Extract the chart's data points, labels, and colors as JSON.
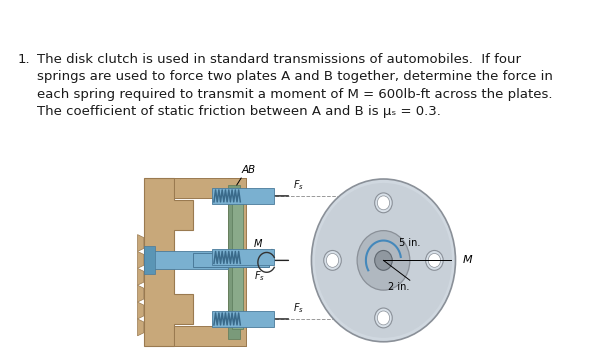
{
  "background_color": "#ffffff",
  "text_color": "#1a1a1a",
  "fontsize": 9.5,
  "line1": "The disk clutch is used in standard transmissions of automobiles.  If four",
  "line2": "springs are used to force two plates A and B together, determine the force in",
  "line3": "each spring required to transmit a moment of M = 600lb-ft across the plates.",
  "line4": "The coefficient of static friction between A and B is μₛ = 0.3.",
  "tan_color": "#c8a87a",
  "tan_dark": "#9a7a50",
  "tan_mid": "#b89060",
  "green_plate": "#8aab8a",
  "steel_blue": "#7ab0d0",
  "steel_dark": "#4a7a9a",
  "steel_mid": "#5a95b5",
  "disk_gray": "#b8c0c8",
  "disk_light": "#d0d8e0",
  "disk_edge": "#8a9098",
  "bolt_hole_color": "#c8d0d8",
  "arrow_color": "#222222",
  "dashed_color": "#999999",
  "label_color": "#111111"
}
